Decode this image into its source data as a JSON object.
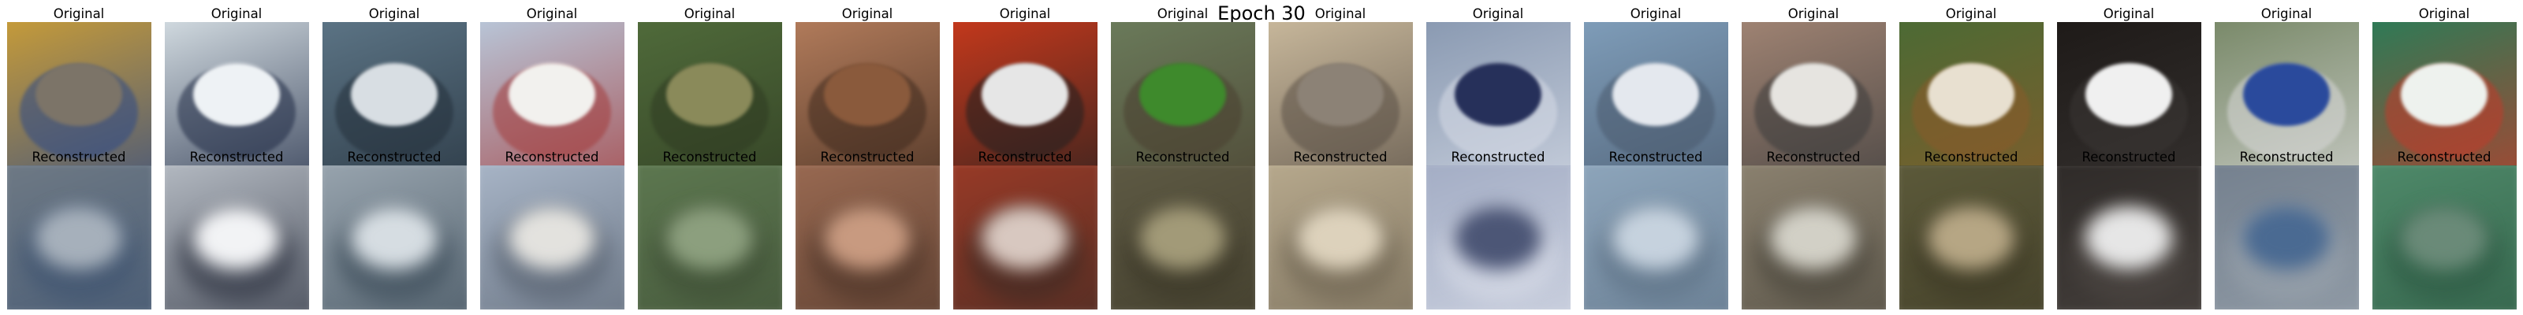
{
  "figure": {
    "suptitle": "Epoch 30",
    "row_titles": {
      "original": "Original",
      "reconstructed": "Reconstructed"
    },
    "pairs": [
      {
        "original": {
          "bg": "#c49a3a",
          "subject": "#7c7468",
          "accent": "#2e4a88"
        },
        "reconstructed": {
          "bg": "#6f7a85",
          "subject": "#a6b0bb",
          "accent": "#3e5370"
        }
      },
      {
        "original": {
          "bg": "#cfd8de",
          "subject": "#eef2f5",
          "accent": "#1f2a44"
        },
        "reconstructed": {
          "bg": "#b6bcc4",
          "subject": "#f2f3f5",
          "accent": "#2a2f3d"
        }
      },
      {
        "original": {
          "bg": "#5b7384",
          "subject": "#d8dee3",
          "accent": "#24303b"
        },
        "reconstructed": {
          "bg": "#9aa6b0",
          "subject": "#d6dde2",
          "accent": "#3a4a57"
        }
      },
      {
        "original": {
          "bg": "#b8c4d6",
          "subject": "#f2f1ee",
          "accent": "#a33b3b"
        },
        "reconstructed": {
          "bg": "#a9b6c8",
          "subject": "#e3e2de",
          "accent": "#56606e"
        }
      },
      {
        "original": {
          "bg": "#4f6a3a",
          "subject": "#8a8a5a",
          "accent": "#2f3b22"
        },
        "reconstructed": {
          "bg": "#5d7850",
          "subject": "#8c9f7e",
          "accent": "#3f4f36"
        }
      },
      {
        "original": {
          "bg": "#b07a5a",
          "subject": "#8a5a3c",
          "accent": "#3f2a1e"
        },
        "reconstructed": {
          "bg": "#9a6a52",
          "subject": "#c89a80",
          "accent": "#4c3428"
        }
      },
      {
        "original": {
          "bg": "#c2381c",
          "subject": "#e6e6e6",
          "accent": "#202020"
        },
        "reconstructed": {
          "bg": "#9a3a26",
          "subject": "#d8c8c0",
          "accent": "#3c2a24"
        }
      },
      {
        "original": {
          "bg": "#6a7a5a",
          "subject": "#3e8a2c",
          "accent": "#4a4030"
        },
        "reconstructed": {
          "bg": "#5e5a44",
          "subject": "#a29a78",
          "accent": "#3c3828"
        }
      },
      {
        "original": {
          "bg": "#c6b69a",
          "subject": "#8c8276",
          "accent": "#5a5046"
        },
        "reconstructed": {
          "bg": "#b8aa8e",
          "subject": "#ddd2bc",
          "accent": "#6e6452"
        }
      },
      {
        "original": {
          "bg": "#8a9ab2",
          "subject": "#26305a",
          "accent": "#d6dbe6"
        },
        "reconstructed": {
          "bg": "#a2acc4",
          "subject": "#4c5676",
          "accent": "#d9dde8"
        }
      },
      {
        "original": {
          "bg": "#7e9cb8",
          "subject": "#e4e8ee",
          "accent": "#4a5a6e"
        },
        "reconstructed": {
          "bg": "#8ea6bc",
          "subject": "#c6d2de",
          "accent": "#5e7286"
        }
      },
      {
        "original": {
          "bg": "#9e8272",
          "subject": "#e6e4e0",
          "accent": "#3c3c3c"
        },
        "reconstructed": {
          "bg": "#8c8270",
          "subject": "#d2d0c6",
          "accent": "#4a463c"
        }
      },
      {
        "original": {
          "bg": "#4c6a34",
          "subject": "#e8e0d0",
          "accent": "#8a5a2a"
        },
        "reconstructed": {
          "bg": "#5c5a3a",
          "subject": "#b6a684",
          "accent": "#3e3a26"
        }
      },
      {
        "original": {
          "bg": "#1e1a18",
          "subject": "#f0f0f0",
          "accent": "#3a3634"
        },
        "reconstructed": {
          "bg": "#2e2a28",
          "subject": "#e6e6e6",
          "accent": "#4e4844"
        }
      },
      {
        "original": {
          "bg": "#7a8a6a",
          "subject": "#2a4a9c",
          "accent": "#d8d8d8"
        },
        "reconstructed": {
          "bg": "#74808e",
          "subject": "#4a6a92",
          "accent": "#9aa4ae"
        }
      },
      {
        "original": {
          "bg": "#2f7a56",
          "subject": "#eef2ee",
          "accent": "#c23a2a"
        },
        "reconstructed": {
          "bg": "#4f8a6a",
          "subject": "#6a8a78",
          "accent": "#2e5a44"
        }
      }
    ]
  }
}
